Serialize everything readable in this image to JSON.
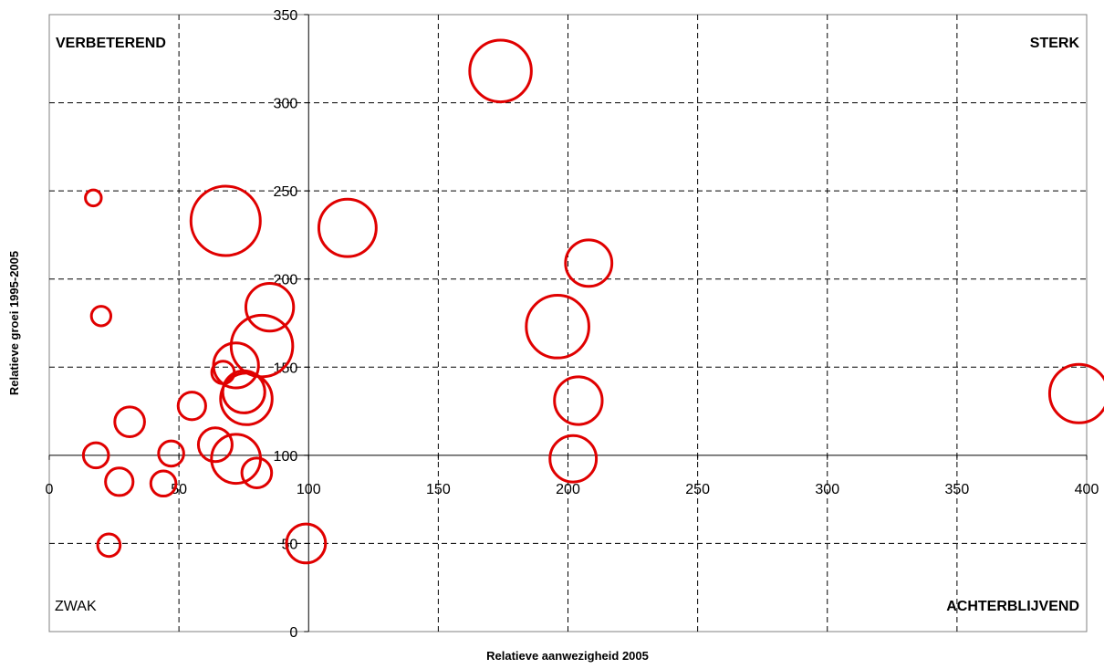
{
  "chart_data": {
    "type": "scatter",
    "variant": "bubble",
    "title": "",
    "xlabel": "Relatieve aanwezigheid 2005",
    "ylabel": "Relatieve groei 1995-2005",
    "xlim": [
      0,
      400
    ],
    "ylim": [
      0,
      350
    ],
    "x_axis_crosses_y_at": 100,
    "y_axis_crosses_x_at": 100,
    "x_ticks": [
      "0",
      "50",
      "100",
      "150",
      "200",
      "250",
      "300",
      "350",
      "400"
    ],
    "y_ticks": [
      "0",
      "50",
      "100",
      "150",
      "200",
      "250",
      "300",
      "350"
    ],
    "grid": true,
    "grid_style": "dashed",
    "marker_color": "#e00000",
    "quadrant_labels": {
      "top_left": "VERBETEREND",
      "top_right": "STERK",
      "bottom_left": "ZWAK",
      "bottom_right": "ACHTERBLIJVEND"
    },
    "points": [
      {
        "x": 17,
        "y": 246,
        "size": 2
      },
      {
        "x": 20,
        "y": 179,
        "size": 3
      },
      {
        "x": 18,
        "y": 100,
        "size": 5
      },
      {
        "x": 23,
        "y": 49,
        "size": 4
      },
      {
        "x": 27,
        "y": 85,
        "size": 6
      },
      {
        "x": 31,
        "y": 119,
        "size": 7
      },
      {
        "x": 44,
        "y": 84,
        "size": 5
      },
      {
        "x": 47,
        "y": 101,
        "size": 5
      },
      {
        "x": 55,
        "y": 128,
        "size": 6
      },
      {
        "x": 67,
        "y": 147,
        "size": 4
      },
      {
        "x": 64,
        "y": 106,
        "size": 9
      },
      {
        "x": 68,
        "y": 233,
        "size": 38
      },
      {
        "x": 72,
        "y": 151,
        "size": 16
      },
      {
        "x": 72,
        "y": 98,
        "size": 19
      },
      {
        "x": 75,
        "y": 136,
        "size": 14
      },
      {
        "x": 76,
        "y": 132,
        "size": 21
      },
      {
        "x": 80,
        "y": 90,
        "size": 7
      },
      {
        "x": 82,
        "y": 162,
        "size": 30
      },
      {
        "x": 85,
        "y": 184,
        "size": 18
      },
      {
        "x": 99,
        "y": 50,
        "size": 12
      },
      {
        "x": 115,
        "y": 229,
        "size": 26
      },
      {
        "x": 174,
        "y": 318,
        "size": 30
      },
      {
        "x": 196,
        "y": 173,
        "size": 31
      },
      {
        "x": 202,
        "y": 98,
        "size": 17
      },
      {
        "x": 204,
        "y": 131,
        "size": 18
      },
      {
        "x": 208,
        "y": 209,
        "size": 17
      },
      {
        "x": 397,
        "y": 135,
        "size": 27
      }
    ]
  }
}
